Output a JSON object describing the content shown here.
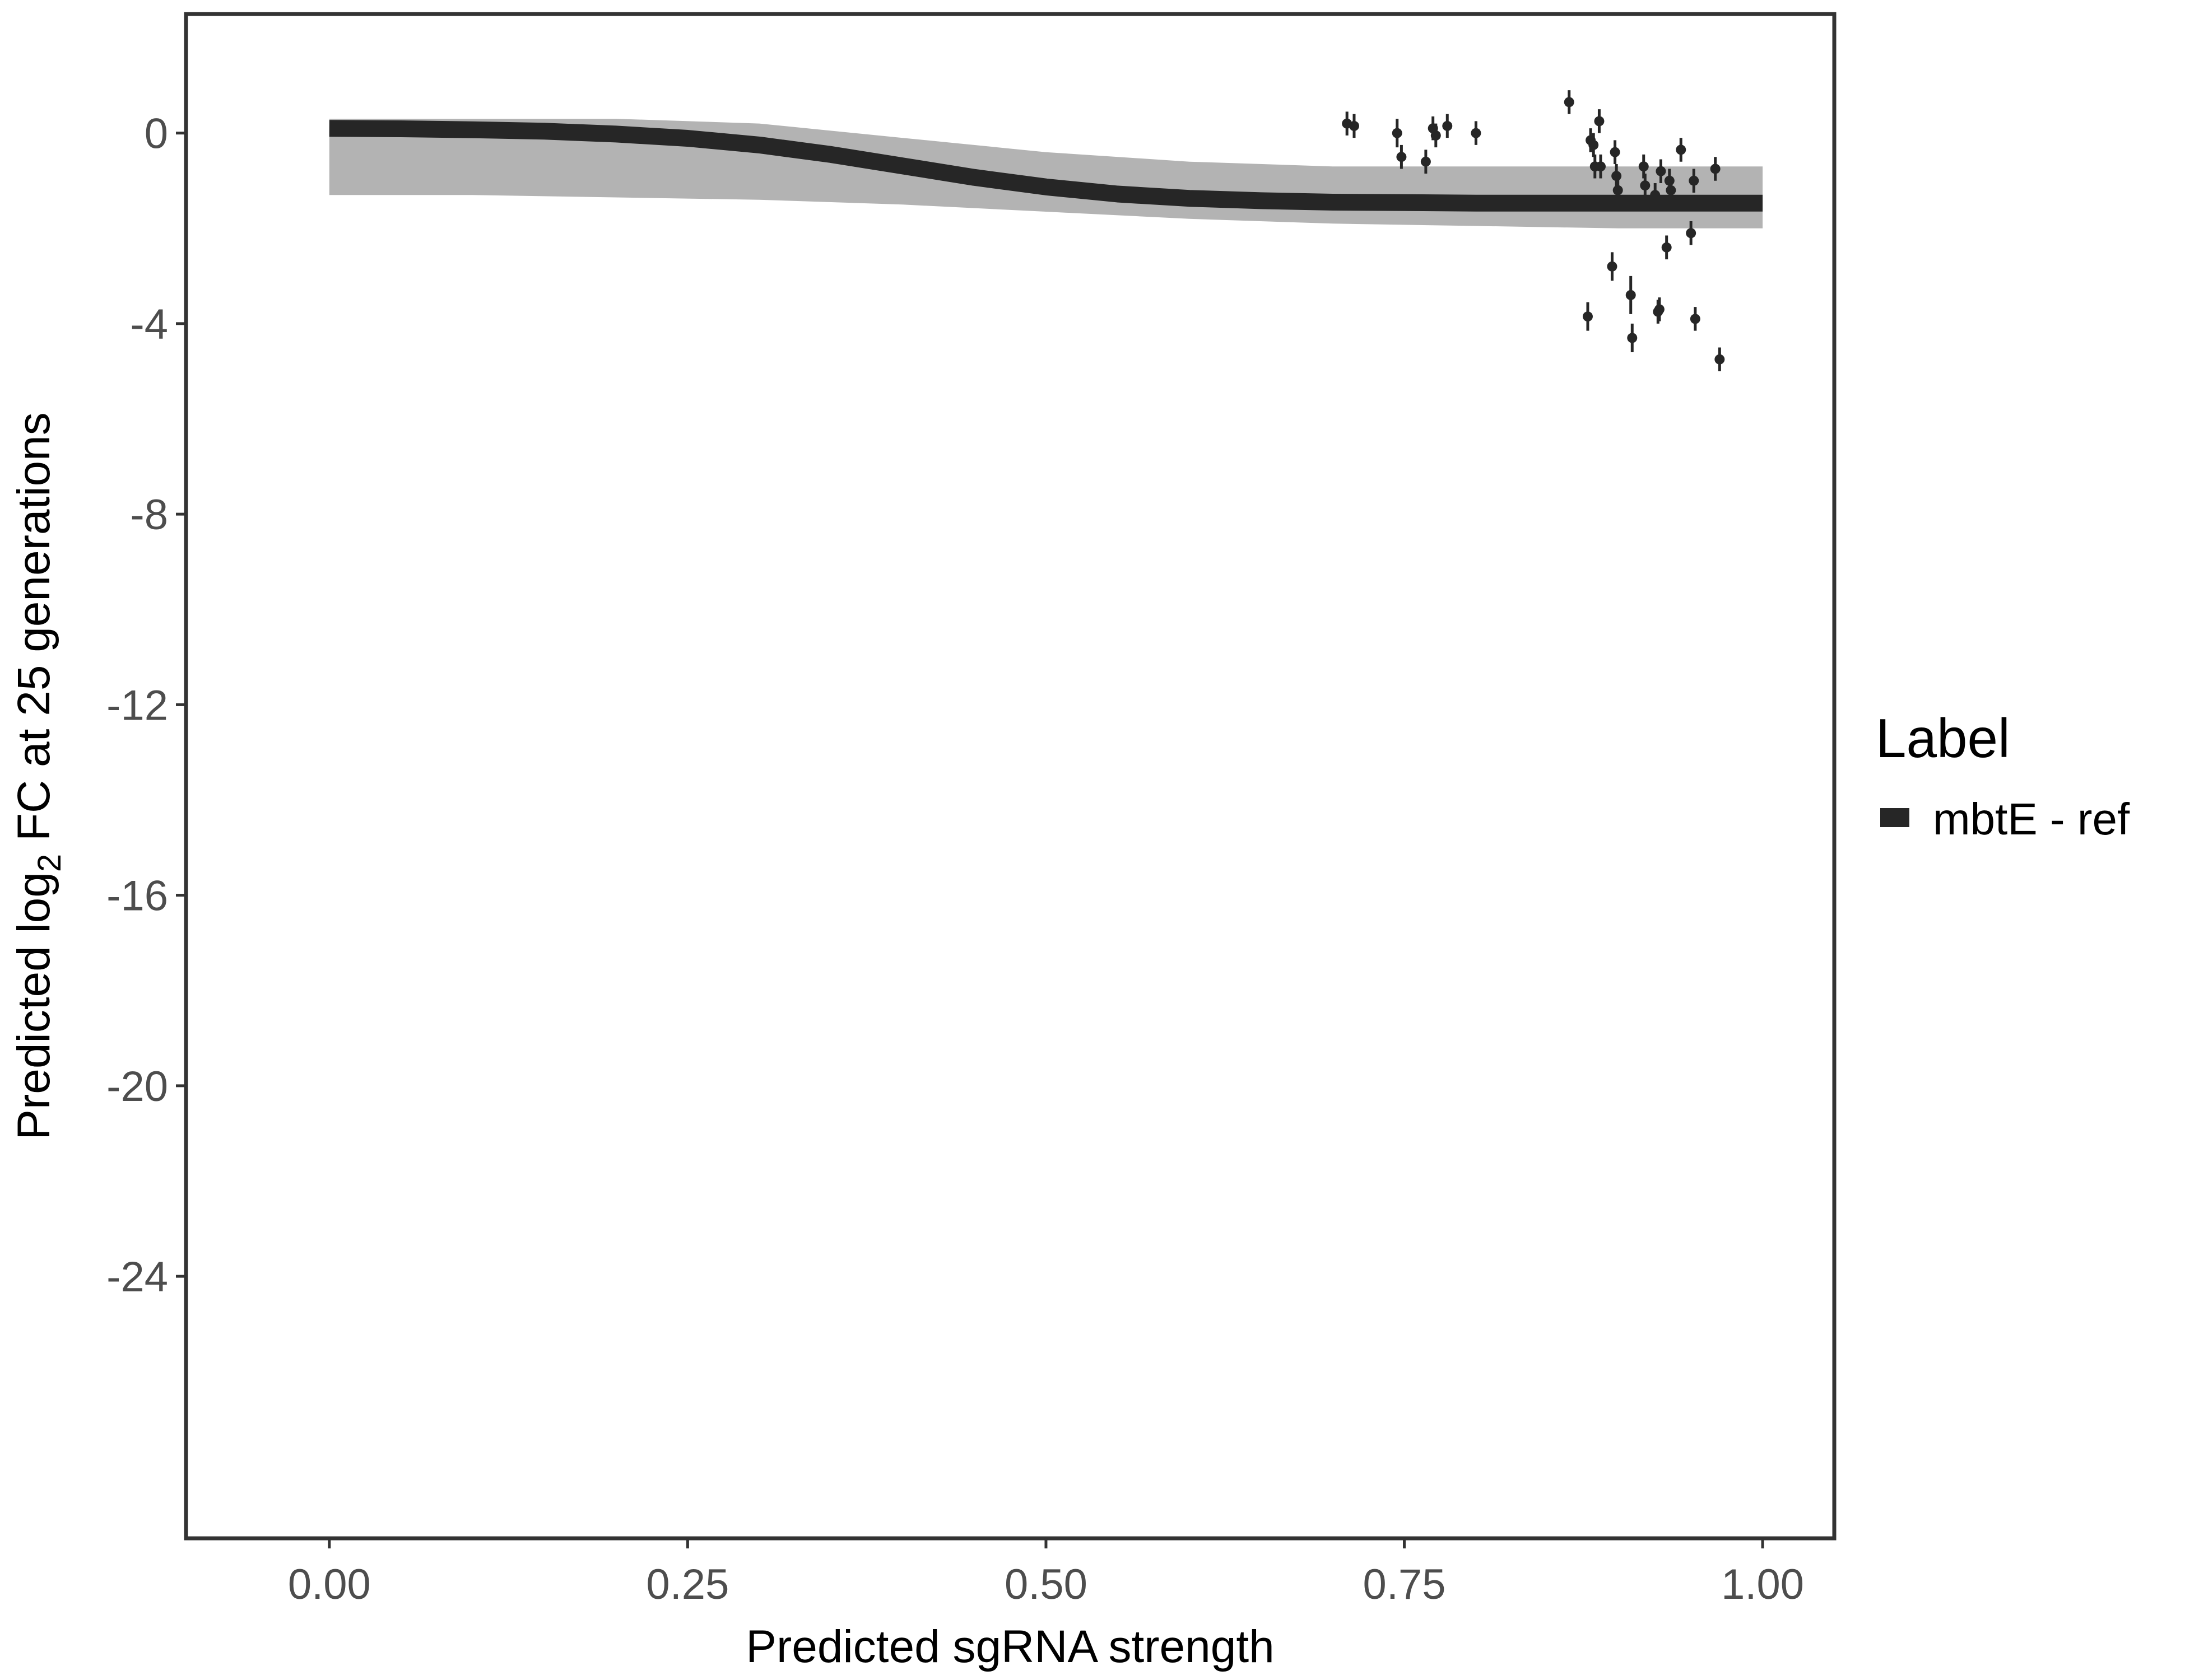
{
  "chart_data": {
    "type": "line",
    "xlabel": "Predicted sgRNA strength",
    "ylabel": {
      "prefix": "Predicted  log",
      "subscript": "2",
      "suffix": " FC at 25 generations"
    },
    "xlim": [
      -0.1,
      1.05
    ],
    "ylim": [
      -29.5,
      2.5
    ],
    "x_ticks": [
      0.0,
      0.25,
      0.5,
      0.75,
      1.0
    ],
    "x_tick_labels": [
      "0.00",
      "0.25",
      "0.50",
      "0.75",
      "1.00"
    ],
    "y_ticks": [
      0,
      -4,
      -8,
      -12,
      -16,
      -20,
      -24
    ],
    "y_tick_labels": [
      "0",
      "-4",
      "-8",
      "-12",
      "-16",
      "-20",
      "-24"
    ],
    "grid": false,
    "legend": {
      "title": "Label",
      "placement": "right",
      "entries": [
        {
          "name": "mbtE - ref",
          "color": "#262626"
        }
      ]
    },
    "series": [
      {
        "name": "mbtE - ref",
        "kind": "fit-line",
        "color": "#262626",
        "x": [
          0.0,
          0.05,
          0.1,
          0.15,
          0.2,
          0.25,
          0.3,
          0.35,
          0.4,
          0.45,
          0.5,
          0.55,
          0.6,
          0.65,
          0.7,
          0.75,
          0.8,
          0.85,
          0.9,
          0.95,
          1.0
        ],
        "y": [
          0.1,
          0.09,
          0.07,
          0.04,
          -0.02,
          -0.11,
          -0.25,
          -0.45,
          -0.69,
          -0.93,
          -1.13,
          -1.28,
          -1.37,
          -1.42,
          -1.45,
          -1.46,
          -1.47,
          -1.47,
          -1.47,
          -1.47,
          -1.47
        ]
      },
      {
        "name": "posterior-band",
        "kind": "band",
        "color": "#a6a6a6",
        "x": [
          0.0,
          0.1,
          0.2,
          0.3,
          0.4,
          0.5,
          0.6,
          0.7,
          0.8,
          0.9,
          1.0
        ],
        "y_upper": [
          0.3,
          0.3,
          0.3,
          0.2,
          -0.1,
          -0.4,
          -0.6,
          -0.7,
          -0.7,
          -0.7,
          -0.7
        ],
        "y_lower": [
          -1.3,
          -1.3,
          -1.35,
          -1.4,
          -1.5,
          -1.65,
          -1.8,
          -1.9,
          -1.95,
          -2.0,
          -2.0
        ]
      },
      {
        "name": "observed-guides",
        "kind": "points-with-errorbars",
        "color": "#262626",
        "points": [
          {
            "x": 0.71,
            "y": 0.2,
            "lo": -0.05,
            "hi": 0.45
          },
          {
            "x": 0.715,
            "y": 0.15,
            "lo": -0.1,
            "hi": 0.4
          },
          {
            "x": 0.745,
            "y": 0.0,
            "lo": -0.3,
            "hi": 0.3
          },
          {
            "x": 0.748,
            "y": -0.5,
            "lo": -0.75,
            "hi": -0.25
          },
          {
            "x": 0.765,
            "y": -0.6,
            "lo": -0.85,
            "hi": -0.35
          },
          {
            "x": 0.77,
            "y": 0.1,
            "lo": -0.15,
            "hi": 0.35
          },
          {
            "x": 0.772,
            "y": -0.05,
            "lo": -0.3,
            "hi": 0.2
          },
          {
            "x": 0.78,
            "y": 0.15,
            "lo": -0.1,
            "hi": 0.4
          },
          {
            "x": 0.8,
            "y": 0.0,
            "lo": -0.25,
            "hi": 0.25
          },
          {
            "x": 0.865,
            "y": 0.65,
            "lo": 0.4,
            "hi": 0.9
          },
          {
            "x": 0.878,
            "y": -3.85,
            "lo": -4.15,
            "hi": -3.55
          },
          {
            "x": 0.88,
            "y": -0.15,
            "lo": -0.4,
            "hi": 0.1
          },
          {
            "x": 0.882,
            "y": -0.25,
            "lo": -0.5,
            "hi": 0.0
          },
          {
            "x": 0.883,
            "y": -0.7,
            "lo": -0.95,
            "hi": -0.45
          },
          {
            "x": 0.886,
            "y": 0.25,
            "lo": 0.0,
            "hi": 0.5
          },
          {
            "x": 0.887,
            "y": -0.7,
            "lo": -0.95,
            "hi": -0.45
          },
          {
            "x": 0.895,
            "y": -2.8,
            "lo": -3.1,
            "hi": -2.5
          },
          {
            "x": 0.897,
            "y": -0.4,
            "lo": -0.65,
            "hi": -0.15
          },
          {
            "x": 0.898,
            "y": -0.9,
            "lo": -1.15,
            "hi": -0.65
          },
          {
            "x": 0.899,
            "y": -1.2,
            "lo": -1.45,
            "hi": -0.95
          },
          {
            "x": 0.908,
            "y": -3.4,
            "lo": -3.8,
            "hi": -3.0
          },
          {
            "x": 0.909,
            "y": -4.3,
            "lo": -4.6,
            "hi": -4.0
          },
          {
            "x": 0.917,
            "y": -0.7,
            "lo": -0.95,
            "hi": -0.45
          },
          {
            "x": 0.918,
            "y": -1.1,
            "lo": -1.35,
            "hi": -0.85
          },
          {
            "x": 0.925,
            "y": -1.3,
            "lo": -1.55,
            "hi": -1.05
          },
          {
            "x": 0.927,
            "y": -3.75,
            "lo": -4.0,
            "hi": -3.5
          },
          {
            "x": 0.928,
            "y": -3.7,
            "lo": -3.95,
            "hi": -3.45
          },
          {
            "x": 0.929,
            "y": -0.8,
            "lo": -1.05,
            "hi": -0.55
          },
          {
            "x": 0.933,
            "y": -2.4,
            "lo": -2.65,
            "hi": -2.15
          },
          {
            "x": 0.935,
            "y": -1.0,
            "lo": -1.25,
            "hi": -0.75
          },
          {
            "x": 0.936,
            "y": -1.2,
            "lo": -1.45,
            "hi": -0.95
          },
          {
            "x": 0.943,
            "y": -0.35,
            "lo": -0.6,
            "hi": -0.1
          },
          {
            "x": 0.95,
            "y": -2.1,
            "lo": -2.35,
            "hi": -1.85
          },
          {
            "x": 0.952,
            "y": -1.0,
            "lo": -1.25,
            "hi": -0.75
          },
          {
            "x": 0.953,
            "y": -3.9,
            "lo": -4.15,
            "hi": -3.65
          },
          {
            "x": 0.967,
            "y": -0.75,
            "lo": -1.0,
            "hi": -0.5
          },
          {
            "x": 0.97,
            "y": -4.75,
            "lo": -5.0,
            "hi": -4.5
          }
        ]
      }
    ]
  }
}
